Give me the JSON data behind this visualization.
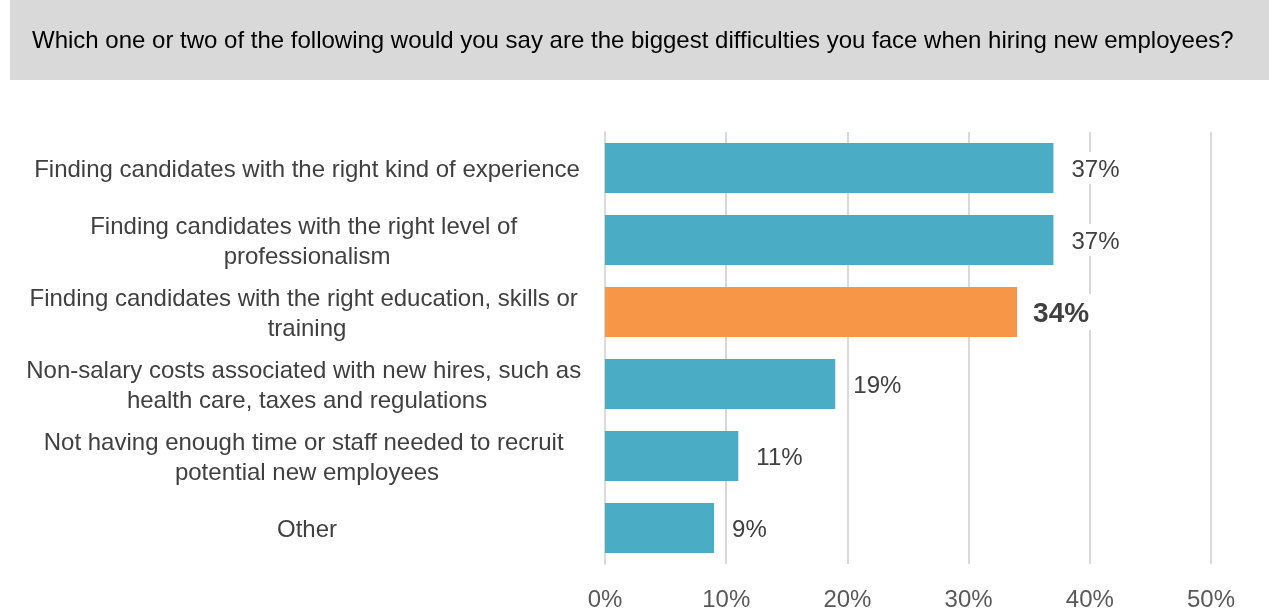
{
  "chart_data": {
    "type": "bar",
    "orientation": "horizontal",
    "title": "Which one or two of the following would you say are the biggest difficulties you face when hiring new employees?",
    "categories": [
      "Finding candidates with the right kind of experience",
      "Finding candidates with the right level of professionalism",
      "Finding candidates with the right education, skills or training",
      "Non-salary costs associated with new hires, such as health care, taxes and regulations",
      "Not having enough time or staff needed to recruit potential new employees",
      "Other"
    ],
    "values": [
      37,
      37,
      34,
      19,
      11,
      9
    ],
    "colors": [
      "#4bacc6",
      "#4bacc6",
      "#f79646",
      "#4bacc6",
      "#4bacc6",
      "#4bacc6"
    ],
    "value_labels": [
      "37%",
      "37%",
      "34%",
      "19%",
      "11%",
      "9%"
    ],
    "xlim": [
      0,
      50
    ],
    "xticks": [
      {
        "value": 0,
        "label": "0%"
      },
      {
        "value": 10,
        "label": "10%"
      },
      {
        "value": 20,
        "label": "20%"
      },
      {
        "value": 30,
        "label": "30%"
      },
      {
        "value": 40,
        "label": "40%"
      },
      {
        "value": 50,
        "label": "50%"
      }
    ],
    "grid": "x"
  }
}
